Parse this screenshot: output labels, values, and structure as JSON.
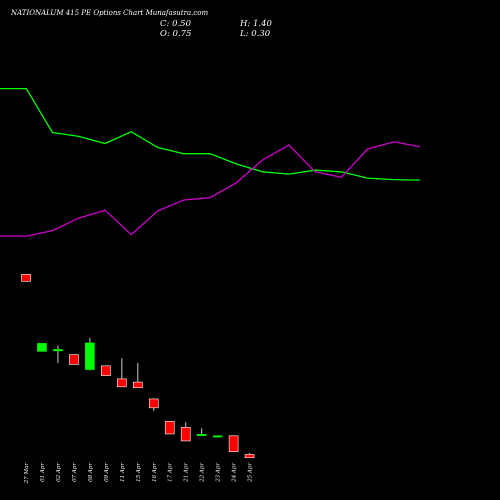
{
  "header": {
    "title": "NATIONALUM 415 PE Options Chart Munafasutra.com",
    "open": "O: 0.75",
    "high": "H: 1.40",
    "low": "L: 0.30",
    "close": "C: 0.50"
  },
  "chart_data": {
    "type": "candlestick",
    "title": "NATIONALUM 415 PE Options Chart Munafasutra.com",
    "x_labels": [
      "27 Mar",
      "01 Apr",
      "02 Apr",
      "07 Apr",
      "08 Apr",
      "09 Apr",
      "11 Apr",
      "15 Apr",
      "16 Apr",
      "17 Apr",
      "21 Apr",
      "22 Apr",
      "23 Apr",
      "24 Apr",
      "25 Apr"
    ],
    "price_axis": {
      "min": 0,
      "max": 30
    },
    "candles": [
      {
        "x": "27 Mar",
        "open": 28.0,
        "high": 28.0,
        "low": 26.5,
        "close": 26.5,
        "color": "red"
      },
      {
        "x": "01 Apr",
        "open": 11.5,
        "high": 13.2,
        "low": 11.5,
        "close": 13.2,
        "color": "green"
      },
      {
        "x": "02 Apr",
        "open": 11.6,
        "high": 12.7,
        "low": 9.0,
        "close": 11.9,
        "color": "green"
      },
      {
        "x": "07 Apr",
        "open": 10.8,
        "high": 10.8,
        "low": 8.7,
        "close": 8.7,
        "color": "red"
      },
      {
        "x": "08 Apr",
        "open": 7.6,
        "high": 14.4,
        "low": 7.4,
        "close": 13.3,
        "color": "green"
      },
      {
        "x": "09 Apr",
        "open": 8.4,
        "high": 8.4,
        "low": 6.3,
        "close": 6.3,
        "color": "red"
      },
      {
        "x": "11 Apr",
        "open": 5.6,
        "high": 10.0,
        "low": 3.9,
        "close": 3.9,
        "color": "red"
      },
      {
        "x": "15 Apr",
        "open": 4.9,
        "high": 9.0,
        "low": 3.7,
        "close": 3.7,
        "color": "red"
      },
      {
        "x": "16 Apr",
        "open": 1.3,
        "high": 1.4,
        "low": -1.3,
        "close": -0.6,
        "color": "red"
      },
      {
        "x": "17 Apr",
        "open": -3.5,
        "high": -3.5,
        "low": -6.2,
        "close": -6.2,
        "color": "red"
      },
      {
        "x": "21 Apr",
        "open": -4.8,
        "high": -3.7,
        "low": -7.7,
        "close": -7.7,
        "color": "red"
      },
      {
        "x": "22 Apr",
        "open": -6.5,
        "high": -5.0,
        "low": -6.5,
        "close": -6.3,
        "color": "green"
      },
      {
        "x": "23 Apr",
        "open": -6.8,
        "high": -6.5,
        "low": -7.0,
        "close": -6.6,
        "color": "green"
      },
      {
        "x": "24 Apr",
        "open": -6.6,
        "high": -6.6,
        "low": -10.0,
        "close": -10.0,
        "color": "red"
      },
      {
        "x": "25 Apr",
        "open": -10.6,
        "high": -10.3,
        "low": -11.3,
        "close": -11.3,
        "color": "red"
      }
    ],
    "indicator_axis": {
      "min": 0,
      "max": 100
    },
    "series": [
      {
        "color": "#00ff00",
        "values": [
          92.0,
          92.0,
          64.0,
          61.5,
          57.0,
          64.5,
          54.5,
          50.5,
          50.5,
          44.0,
          39.0,
          37.5,
          40.0,
          39.0,
          35.0,
          34.0,
          33.7
        ]
      },
      {
        "color": "#cc00cc",
        "values": [
          -2.0,
          -2.0,
          1.5,
          9.5,
          14.5,
          -1.0,
          14.0,
          21.0,
          22.5,
          32.0,
          46.5,
          56.0,
          39.0,
          35.5,
          53.5,
          58.0,
          55.0
        ]
      }
    ]
  }
}
